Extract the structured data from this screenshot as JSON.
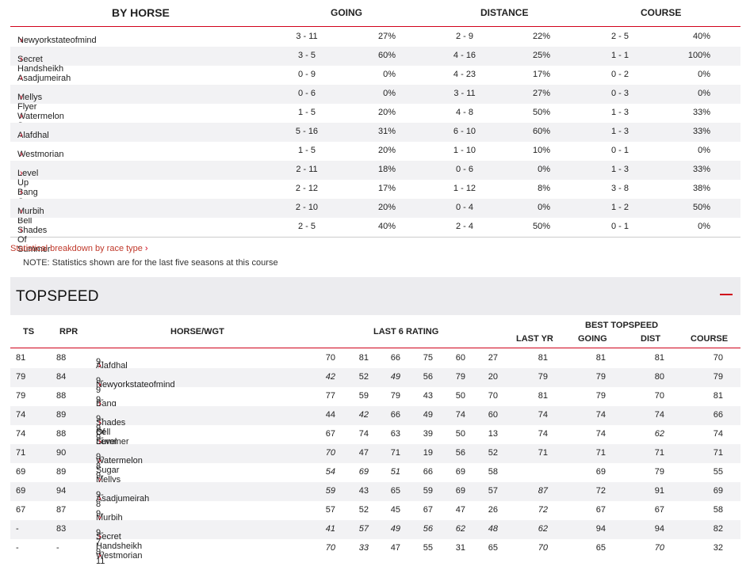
{
  "by_horse": {
    "title": "BY HORSE",
    "going_label": "GOING",
    "distance_label": "DISTANCE",
    "course_label": "COURSE",
    "rows": [
      {
        "name": "Newyorkstateofmind",
        "going_record": "3 - 11",
        "going_pct": "27%",
        "distance_record": "2 - 9",
        "distance_pct": "22%",
        "course_record": "2 - 5",
        "course_pct": "40%"
      },
      {
        "name": "Secret Handsheikh",
        "going_record": "3 - 5",
        "going_pct": "60%",
        "distance_record": "4 - 16",
        "distance_pct": "25%",
        "course_record": "1 - 1",
        "course_pct": "100%"
      },
      {
        "name": "Asadjumeirah",
        "going_record": "0 - 9",
        "going_pct": "0%",
        "distance_record": "4 - 23",
        "distance_pct": "17%",
        "course_record": "0 - 2",
        "course_pct": "0%"
      },
      {
        "name": "Mellys Flyer",
        "going_record": "0 - 6",
        "going_pct": "0%",
        "distance_record": "3 - 11",
        "distance_pct": "27%",
        "course_record": "0 - 3",
        "course_pct": "0%"
      },
      {
        "name": "Watermelon Sugar",
        "going_record": "1 - 5",
        "going_pct": "20%",
        "distance_record": "4 - 8",
        "distance_pct": "50%",
        "course_record": "1 - 3",
        "course_pct": "33%"
      },
      {
        "name": "Alafdhal",
        "going_record": "5 - 16",
        "going_pct": "31%",
        "distance_record": "6 - 10",
        "distance_pct": "60%",
        "course_record": "1 - 3",
        "course_pct": "33%"
      },
      {
        "name": "Westmorian",
        "going_record": "1 - 5",
        "going_pct": "20%",
        "distance_record": "1 - 10",
        "distance_pct": "10%",
        "course_record": "0 - 1",
        "course_pct": "0%"
      },
      {
        "name": "Level Up",
        "going_record": "2 - 11",
        "going_pct": "18%",
        "distance_record": "0 - 6",
        "distance_pct": "0%",
        "course_record": "1 - 3",
        "course_pct": "33%"
      },
      {
        "name": "Bang On The Bell",
        "going_record": "2 - 12",
        "going_pct": "17%",
        "distance_record": "1 - 12",
        "distance_pct": "8%",
        "course_record": "3 - 8",
        "course_pct": "38%"
      },
      {
        "name": "Murbih",
        "going_record": "2 - 10",
        "going_pct": "20%",
        "distance_record": "0 - 4",
        "distance_pct": "0%",
        "course_record": "1 - 2",
        "course_pct": "50%"
      },
      {
        "name": "Shades Of Summer",
        "going_record": "2 - 5",
        "going_pct": "40%",
        "distance_record": "2 - 4",
        "distance_pct": "50%",
        "course_record": "0 - 1",
        "course_pct": "0%"
      }
    ]
  },
  "breakdown_link": "Statistical breakdown by race type",
  "note": "NOTE: Statistics shown are for the last five seasons at this course",
  "topspeed": {
    "title": "TOPSPEED",
    "headers": {
      "ts": "TS",
      "rpr": "RPR",
      "horse_wgt": "HORSE/WGT",
      "last6": "LAST 6 RATING",
      "last_yr": "LAST YR",
      "best_topspeed": "BEST TOPSPEED",
      "going": "GOING",
      "dist": "DIST",
      "course": "COURSE"
    },
    "rows": [
      {
        "ts": "81",
        "rpr": "88",
        "horse": "Alafdhal",
        "wgt": "9-11",
        "last6": [
          {
            "v": "70",
            "i": false
          },
          {
            "v": "81",
            "i": false
          },
          {
            "v": "66",
            "i": false
          },
          {
            "v": "75",
            "i": false
          },
          {
            "v": "60",
            "i": false
          },
          {
            "v": "27",
            "i": false
          }
        ],
        "last_yr": {
          "v": "81",
          "i": false
        },
        "going": {
          "v": "81",
          "i": false
        },
        "dist": {
          "v": "81",
          "i": false
        },
        "course": {
          "v": "70",
          "i": false
        }
      },
      {
        "ts": "79",
        "rpr": "84",
        "horse": "Newyorkstateofmind",
        "wgt": "9-9",
        "last6": [
          {
            "v": "42",
            "i": true
          },
          {
            "v": "52",
            "i": false
          },
          {
            "v": "49",
            "i": true
          },
          {
            "v": "56",
            "i": false
          },
          {
            "v": "79",
            "i": false
          },
          {
            "v": "20",
            "i": false
          }
        ],
        "last_yr": {
          "v": "79",
          "i": false
        },
        "going": {
          "v": "79",
          "i": false
        },
        "dist": {
          "v": "80",
          "i": false
        },
        "course": {
          "v": "79",
          "i": false
        }
      },
      {
        "ts": "79",
        "rpr": "88",
        "horse": "Bang On The Bell",
        "wgt": "9-5",
        "last6": [
          {
            "v": "77",
            "i": false
          },
          {
            "v": "59",
            "i": false
          },
          {
            "v": "79",
            "i": false
          },
          {
            "v": "43",
            "i": false
          },
          {
            "v": "50",
            "i": false
          },
          {
            "v": "70",
            "i": false
          }
        ],
        "last_yr": {
          "v": "81",
          "i": false
        },
        "going": {
          "v": "79",
          "i": false
        },
        "dist": {
          "v": "70",
          "i": false
        },
        "course": {
          "v": "81",
          "i": false
        }
      },
      {
        "ts": "74",
        "rpr": "89",
        "horse": "Shades Of Summer",
        "wgt": "9-9",
        "last6": [
          {
            "v": "44",
            "i": false
          },
          {
            "v": "42",
            "i": true
          },
          {
            "v": "66",
            "i": false
          },
          {
            "v": "49",
            "i": false
          },
          {
            "v": "74",
            "i": false
          },
          {
            "v": "60",
            "i": false
          }
        ],
        "last_yr": {
          "v": "74",
          "i": false
        },
        "going": {
          "v": "74",
          "i": false
        },
        "dist": {
          "v": "74",
          "i": false
        },
        "course": {
          "v": "66",
          "i": false
        }
      },
      {
        "ts": "74",
        "rpr": "88",
        "horse": "Level Up",
        "wgt": "9-6",
        "last6": [
          {
            "v": "67",
            "i": false
          },
          {
            "v": "74",
            "i": false
          },
          {
            "v": "63",
            "i": false
          },
          {
            "v": "39",
            "i": false
          },
          {
            "v": "50",
            "i": false
          },
          {
            "v": "13",
            "i": false
          }
        ],
        "last_yr": {
          "v": "74",
          "i": false
        },
        "going": {
          "v": "74",
          "i": false
        },
        "dist": {
          "v": "62",
          "i": true
        },
        "course": {
          "v": "74",
          "i": false
        }
      },
      {
        "ts": "71",
        "rpr": "90",
        "horse": "Watermelon Sugar",
        "wgt": "9-8",
        "last6": [
          {
            "v": "70",
            "i": true
          },
          {
            "v": "47",
            "i": false
          },
          {
            "v": "71",
            "i": false
          },
          {
            "v": "19",
            "i": false
          },
          {
            "v": "56",
            "i": false
          },
          {
            "v": "52",
            "i": false
          }
        ],
        "last_yr": {
          "v": "71",
          "i": false
        },
        "going": {
          "v": "71",
          "i": false
        },
        "dist": {
          "v": "71",
          "i": false
        },
        "course": {
          "v": "71",
          "i": false
        }
      },
      {
        "ts": "69",
        "rpr": "89",
        "horse": "Mellys Flyer",
        "wgt": "9-11",
        "last6": [
          {
            "v": "54",
            "i": true
          },
          {
            "v": "69",
            "i": true
          },
          {
            "v": "51",
            "i": true
          },
          {
            "v": "66",
            "i": false
          },
          {
            "v": "69",
            "i": false
          },
          {
            "v": "58",
            "i": false
          }
        ],
        "last_yr": {
          "v": "",
          "i": false
        },
        "going": {
          "v": "69",
          "i": false
        },
        "dist": {
          "v": "79",
          "i": false
        },
        "course": {
          "v": "55",
          "i": false
        }
      },
      {
        "ts": "69",
        "rpr": "94",
        "horse": "Asadjumeirah",
        "wgt": "9-8",
        "last6": [
          {
            "v": "59",
            "i": true
          },
          {
            "v": "43",
            "i": false
          },
          {
            "v": "65",
            "i": false
          },
          {
            "v": "59",
            "i": false
          },
          {
            "v": "69",
            "i": false
          },
          {
            "v": "57",
            "i": false
          }
        ],
        "last_yr": {
          "v": "87",
          "i": true
        },
        "going": {
          "v": "72",
          "i": false
        },
        "dist": {
          "v": "91",
          "i": false
        },
        "course": {
          "v": "69",
          "i": false
        }
      },
      {
        "ts": "67",
        "rpr": "87",
        "horse": "Murbih",
        "wgt": "9-4",
        "last6": [
          {
            "v": "57",
            "i": false
          },
          {
            "v": "52",
            "i": false
          },
          {
            "v": "45",
            "i": false
          },
          {
            "v": "67",
            "i": false
          },
          {
            "v": "47",
            "i": false
          },
          {
            "v": "26",
            "i": false
          }
        ],
        "last_yr": {
          "v": "72",
          "i": true
        },
        "going": {
          "v": "67",
          "i": false
        },
        "dist": {
          "v": "67",
          "i": false
        },
        "course": {
          "v": "58",
          "i": false
        }
      },
      {
        "ts": "-",
        "rpr": "83",
        "horse": "Secret Handsheikh",
        "wgt": "9-7",
        "last6": [
          {
            "v": "41",
            "i": true
          },
          {
            "v": "57",
            "i": true
          },
          {
            "v": "49",
            "i": true
          },
          {
            "v": "56",
            "i": true
          },
          {
            "v": "62",
            "i": true
          },
          {
            "v": "48",
            "i": true
          }
        ],
        "last_yr": {
          "v": "62",
          "i": true
        },
        "going": {
          "v": "94",
          "i": false
        },
        "dist": {
          "v": "94",
          "i": false
        },
        "course": {
          "v": "82",
          "i": false
        }
      },
      {
        "ts": "-",
        "rpr": "-",
        "horse": "Westmorian",
        "wgt": "9-11",
        "last6": [
          {
            "v": "70",
            "i": true
          },
          {
            "v": "33",
            "i": true
          },
          {
            "v": "47",
            "i": false
          },
          {
            "v": "55",
            "i": false
          },
          {
            "v": "31",
            "i": false
          },
          {
            "v": "65",
            "i": false
          }
        ],
        "last_yr": {
          "v": "70",
          "i": true
        },
        "going": {
          "v": "65",
          "i": false
        },
        "dist": {
          "v": "70",
          "i": true
        },
        "course": {
          "v": "32",
          "i": false
        }
      }
    ]
  }
}
